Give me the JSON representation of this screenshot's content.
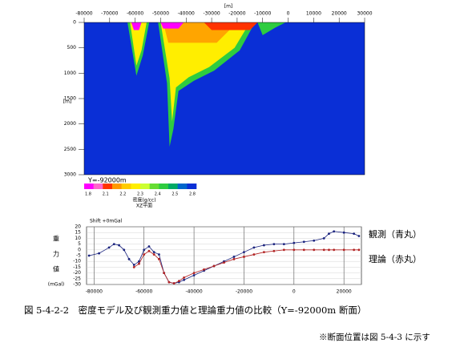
{
  "section": {
    "axis_unit_x": "[m]",
    "axis_unit_y": "[m]",
    "xlim": [
      -80000,
      30000
    ],
    "xticks": [
      -80000,
      -70000,
      -60000,
      -50000,
      -40000,
      -30000,
      -20000,
      -10000,
      0,
      10000,
      20000,
      30000
    ],
    "ylim": [
      0,
      3000
    ],
    "yticks": [
      0,
      500,
      1000,
      1500,
      2000,
      2500,
      3000
    ],
    "background": {
      "density": 2.67,
      "color": "#0a2fd6"
    },
    "bodies": [
      {
        "density": 2.4,
        "color": "#2ecc40",
        "x": [
          -51000,
          -13000,
          -19000,
          -29000,
          -37000,
          -43000,
          -45000,
          -46500,
          -47500
        ],
        "z": [
          0,
          0,
          550,
          950,
          1150,
          1350,
          2100,
          2450,
          1200
        ]
      },
      {
        "density": 2.2,
        "color": "#ffee00",
        "x": [
          -50000,
          -15000,
          -21000,
          -31000,
          -39000,
          -44000,
          -45500,
          -46500
        ],
        "z": [
          0,
          0,
          500,
          880,
          1080,
          1280,
          1950,
          1100
        ]
      },
      {
        "density": 2.1,
        "color": "#ffa500",
        "x": [
          -49000,
          -20000,
          -28000,
          -47000
        ],
        "z": [
          0,
          0,
          400,
          400
        ]
      },
      {
        "density": 2.0,
        "color": "#ff3300",
        "x": [
          -33000,
          -12000,
          -15000,
          -30000
        ],
        "z": [
          0,
          0,
          150,
          150
        ]
      },
      {
        "density": 1.8,
        "color": "#ff00ff",
        "x": [
          -50000,
          -41000,
          -43000,
          -49000
        ],
        "z": [
          0,
          0,
          120,
          120
        ]
      },
      {
        "density": 2.4,
        "color": "#2ecc40",
        "x": [
          -63000,
          -54500,
          -57000,
          -59500
        ],
        "z": [
          0,
          0,
          650,
          1050
        ]
      },
      {
        "density": 2.2,
        "color": "#ffee00",
        "x": [
          -62000,
          -55500,
          -57500,
          -59500
        ],
        "z": [
          0,
          0,
          550,
          850
        ]
      },
      {
        "density": 1.8,
        "color": "#ff00ff",
        "x": [
          -61500,
          -57500,
          -58500,
          -60500
        ],
        "z": [
          0,
          0,
          150,
          150
        ]
      },
      {
        "density": 2.4,
        "color": "#2ecc40",
        "x": [
          -12000,
          -1000,
          -5000,
          -10000
        ],
        "z": [
          0,
          0,
          100,
          250
        ]
      }
    ],
    "profile_label": "Y=-92000m",
    "colorbar": {
      "labels": [
        1.8,
        2.1,
        2.2,
        2.3,
        2.4,
        2.5,
        2.8
      ],
      "colors": [
        "#ff00ff",
        "#ff66cc",
        "#ff3300",
        "#ff9900",
        "#ffcc00",
        "#ffee00",
        "#ccff33",
        "#66dd33",
        "#2ecc40",
        "#00aa66",
        "#0066cc",
        "#0a2fd6"
      ],
      "title": "密度(g/cc)",
      "subtitle": "XZ平面"
    }
  },
  "chart_data": {
    "type": "line",
    "shift_label": "Shift +0mGal",
    "ylabel_lines": [
      "重",
      "力",
      "値",
      "(mGal)"
    ],
    "x": [
      -82000,
      -78000,
      -74000,
      -72000,
      -70000,
      -68000,
      -66000,
      -64000,
      -62000,
      -60000,
      -58000,
      -56000,
      -54000,
      -52000,
      -50000,
      -48000,
      -46000,
      -44000,
      -40000,
      -36000,
      -32000,
      -28000,
      -24000,
      -20000,
      -16000,
      -12000,
      -8000,
      -4000,
      0,
      4000,
      8000,
      12000,
      14000,
      16000,
      20000,
      24000,
      26000
    ],
    "series": [
      {
        "name": "観測（青丸）",
        "color": "#1a237e",
        "values": [
          -5,
          -3,
          2,
          5,
          4,
          0,
          -8,
          -13,
          -10,
          0,
          3,
          -2,
          -4,
          -20,
          -28,
          -29,
          -28,
          -26,
          -22,
          -18,
          -14,
          -10,
          -6,
          -2,
          2,
          4,
          5,
          5,
          6,
          7,
          8,
          10,
          14,
          16,
          15,
          14,
          12
        ]
      },
      {
        "name": "理論（赤丸）",
        "color": "#b22222",
        "values": [
          null,
          null,
          null,
          null,
          null,
          null,
          null,
          -15,
          -12,
          -4,
          -1,
          -4,
          -8,
          -20,
          -28,
          -29,
          -27,
          -24,
          -20,
          -17,
          -14,
          -11,
          -8,
          -6,
          -4,
          -2,
          -1,
          0,
          0,
          0,
          0,
          0,
          0,
          0,
          0,
          0,
          0
        ]
      }
    ],
    "xlim": [
      -83000,
      27000
    ],
    "xticks": [
      -80000,
      -60000,
      -40000,
      -20000,
      0,
      20000
    ],
    "ylim": [
      -30,
      20
    ],
    "yticks": [
      20,
      15,
      10,
      5,
      0,
      -5,
      -10,
      -15,
      -20,
      -25,
      -30
    ],
    "grid": true
  },
  "caption": "図 5-4-2-2　密度モデル及び観測重力値と理論重力値の比較（Y=-92000m 断面）",
  "note": "※断面位置は図 5-4-3 に示す"
}
